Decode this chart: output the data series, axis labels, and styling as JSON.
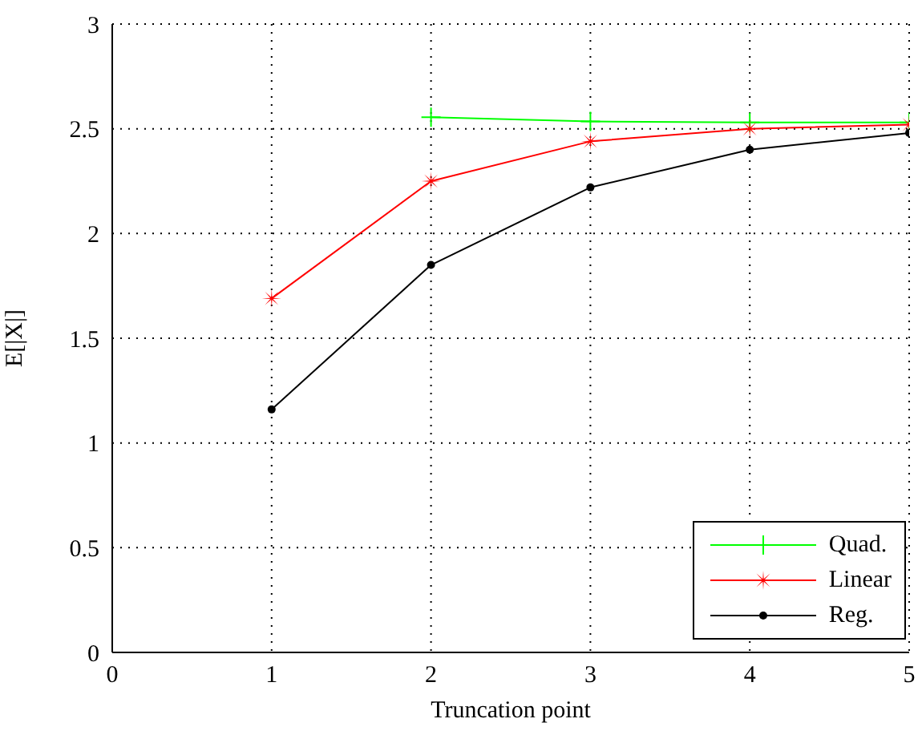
{
  "chart_data": {
    "type": "line",
    "xlabel": "Truncation point",
    "ylabel": "E[|X|]",
    "x": [
      1,
      2,
      3,
      4,
      5
    ],
    "xlim": [
      0,
      5
    ],
    "xticks": [
      0,
      1,
      2,
      3,
      4,
      5
    ],
    "ylim": [
      0,
      3
    ],
    "yticks": [
      0,
      0.5,
      1,
      1.5,
      2,
      2.5,
      3
    ],
    "grid": true,
    "legend": "bottom right",
    "series": [
      {
        "name": "Quad.",
        "color": "#00ff00",
        "marker": "cross",
        "values": [
          null,
          2.555,
          2.535,
          2.53,
          2.53
        ]
      },
      {
        "name": "Linear",
        "color": "#ff0000",
        "marker": "star",
        "values": [
          1.69,
          2.25,
          2.44,
          2.5,
          2.52
        ]
      },
      {
        "name": "Reg.",
        "color": "#000000",
        "marker": "circle",
        "values": [
          1.16,
          1.85,
          2.22,
          2.4,
          2.48
        ]
      }
    ]
  }
}
